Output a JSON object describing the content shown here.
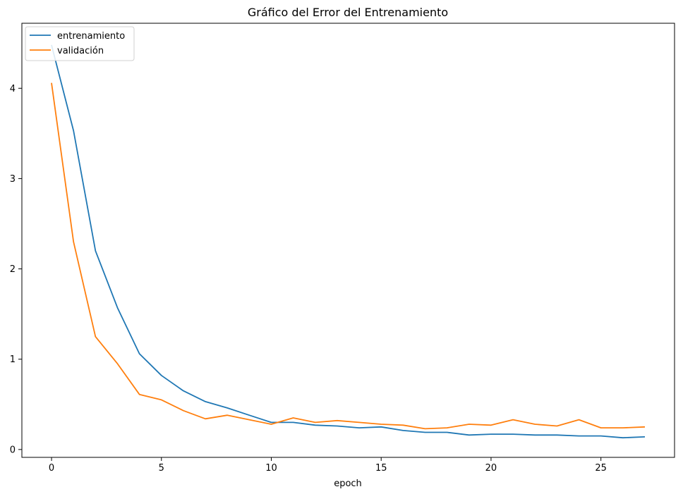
{
  "chart_data": {
    "type": "line",
    "title": "Gráfico del Error del Entrenamiento",
    "xlabel": "epoch",
    "ylabel": "",
    "xlim": [
      -1.35,
      28.35
    ],
    "ylim": [
      -0.087,
      4.72
    ],
    "xticks": [
      0,
      5,
      10,
      15,
      20,
      25
    ],
    "yticks": [
      0,
      1,
      2,
      3,
      4
    ],
    "grid": false,
    "legend_position": "top-left",
    "x": [
      0,
      1,
      2,
      3,
      4,
      5,
      6,
      7,
      8,
      9,
      10,
      11,
      12,
      13,
      14,
      15,
      16,
      17,
      18,
      19,
      20,
      21,
      22,
      23,
      24,
      25,
      26,
      27
    ],
    "series": [
      {
        "name": "entrenamiento",
        "color": "#1f77b4",
        "values": [
          4.48,
          3.53,
          2.2,
          1.57,
          1.06,
          0.82,
          0.65,
          0.53,
          0.46,
          0.38,
          0.3,
          0.3,
          0.27,
          0.26,
          0.24,
          0.25,
          0.21,
          0.19,
          0.19,
          0.16,
          0.17,
          0.17,
          0.16,
          0.16,
          0.15,
          0.15,
          0.13,
          0.14
        ]
      },
      {
        "name": "validación",
        "color": "#ff7f0e",
        "values": [
          4.06,
          2.3,
          1.25,
          0.95,
          0.61,
          0.55,
          0.43,
          0.34,
          0.38,
          0.33,
          0.28,
          0.35,
          0.3,
          0.32,
          0.3,
          0.28,
          0.27,
          0.23,
          0.24,
          0.28,
          0.27,
          0.33,
          0.28,
          0.26,
          0.33,
          0.24,
          0.24,
          0.25
        ]
      }
    ]
  }
}
